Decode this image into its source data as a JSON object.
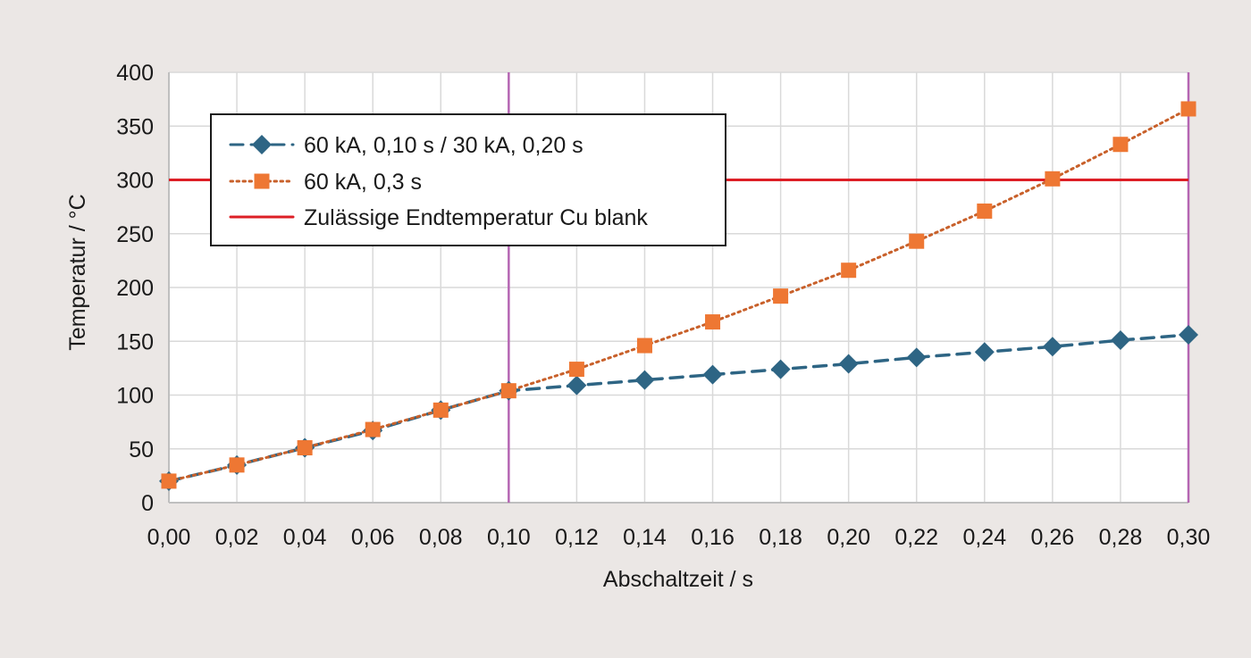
{
  "chart_data": {
    "type": "line",
    "xlabel": "Abschaltzeit / s",
    "ylabel": "Temperatur / °C",
    "xlim": [
      0,
      0.3
    ],
    "ylim": [
      0,
      400
    ],
    "x_ticks": [
      "0,00",
      "0,02",
      "0,04",
      "0,06",
      "0,08",
      "0,10",
      "0,12",
      "0,14",
      "0,16",
      "0,18",
      "0,20",
      "0,22",
      "0,24",
      "0,26",
      "0,28",
      "0,30"
    ],
    "y_ticks": [
      "0",
      "50",
      "100",
      "150",
      "200",
      "250",
      "300",
      "350",
      "400"
    ],
    "grid": true,
    "legend_position": "top-left",
    "series": [
      {
        "name": "60 kA, 0,10 s / 30 kA, 0,20 s",
        "color": "#2e6584",
        "line_style": "dashed",
        "marker": "diamond",
        "x": [
          0,
          0.02,
          0.04,
          0.06,
          0.08,
          0.1,
          0.12,
          0.14,
          0.16,
          0.18,
          0.2,
          0.22,
          0.24,
          0.26,
          0.28,
          0.3
        ],
        "y": [
          20,
          35,
          51,
          67,
          86,
          104,
          109,
          114,
          119,
          124,
          129,
          135,
          140,
          145,
          151,
          156
        ]
      },
      {
        "name": "60 kA, 0,3 s",
        "color": "#ee7733",
        "line_color": "#c8602a",
        "line_style": "dotted",
        "marker": "square",
        "x": [
          0,
          0.02,
          0.04,
          0.06,
          0.08,
          0.1,
          0.12,
          0.14,
          0.16,
          0.18,
          0.2,
          0.22,
          0.24,
          0.26,
          0.28,
          0.3
        ],
        "y": [
          20,
          35,
          51,
          68,
          86,
          104,
          124,
          146,
          168,
          192,
          216,
          243,
          271,
          301,
          333,
          366
        ]
      },
      {
        "name": "Zulässige Endtemperatur Cu blank",
        "color": "#dd1f26",
        "line_style": "solid",
        "marker": "none",
        "type": "hline",
        "y": 300
      }
    ],
    "vertical_lines": [
      {
        "x": 0.1,
        "color": "#b565b3"
      },
      {
        "x": 0.3,
        "color": "#b565b3"
      }
    ]
  }
}
